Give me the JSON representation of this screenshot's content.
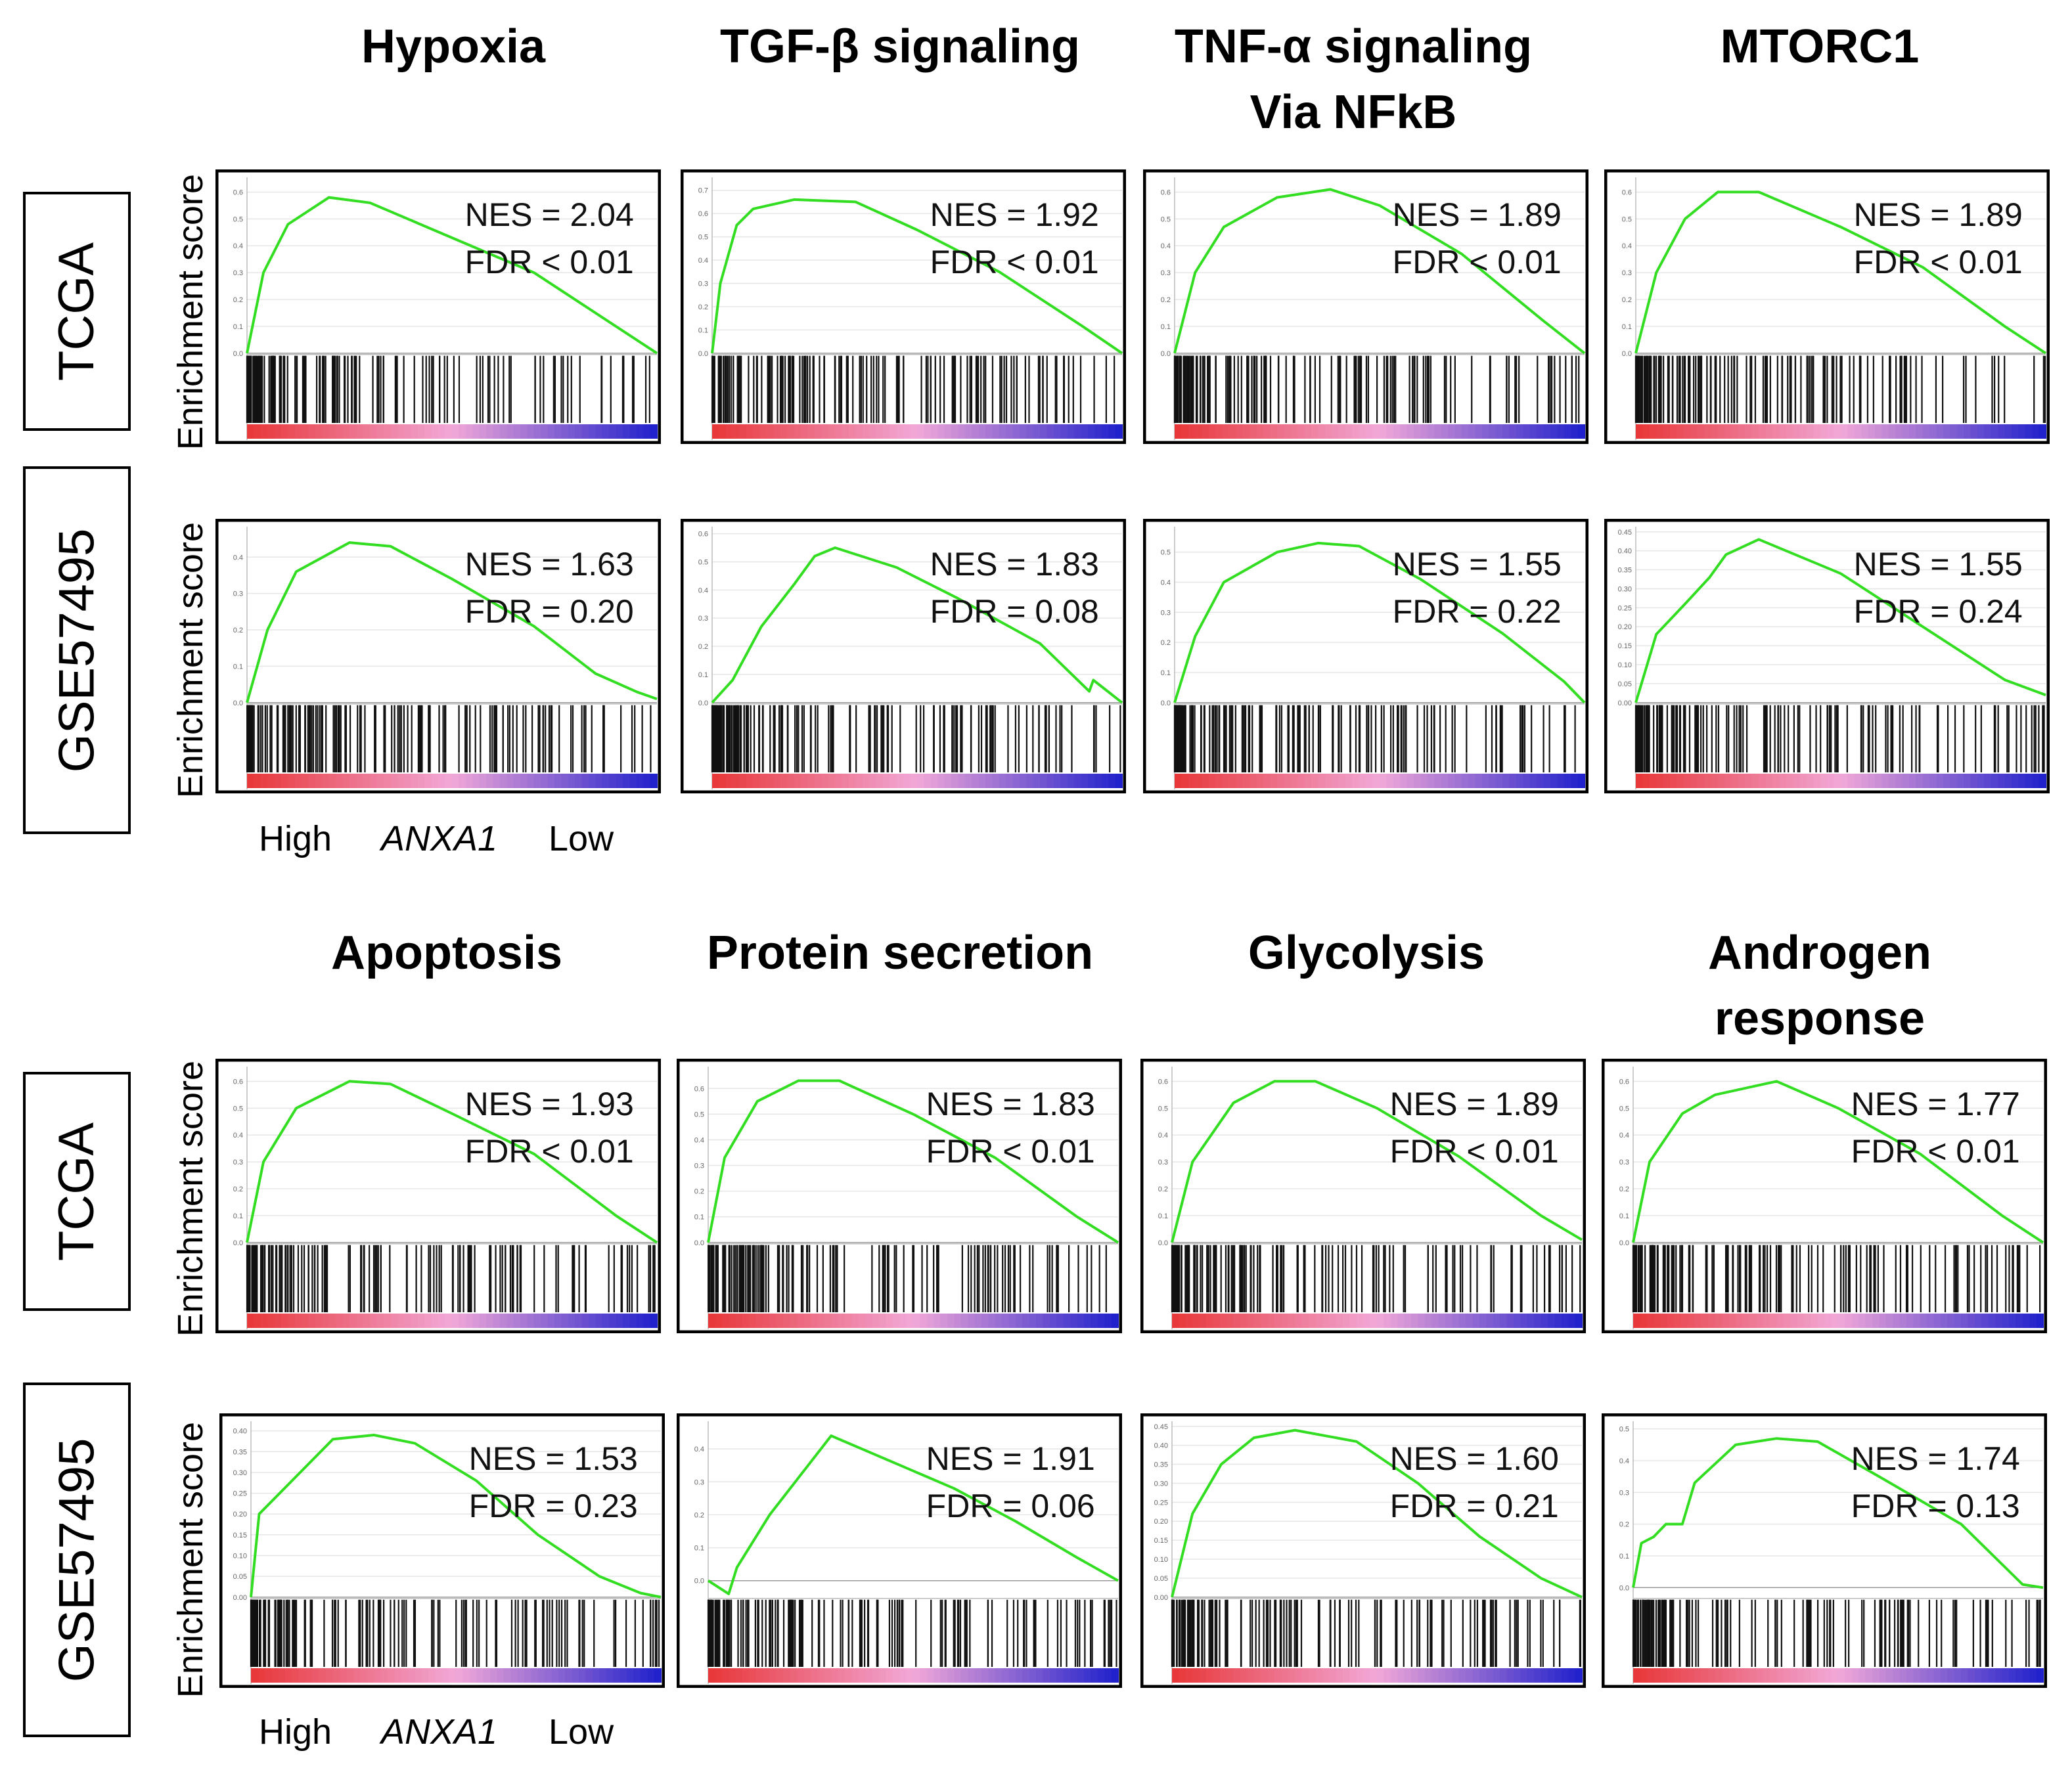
{
  "page": {
    "panels": [
      {
        "titles": [
          "Hypoxia",
          "TGF-β signaling",
          "TNF-α signaling Via NFkB",
          "MTORC1"
        ],
        "rows": [
          {
            "label": "TCGA",
            "y_axis_label": "Enrichment score"
          },
          {
            "label": "GSE57495",
            "y_axis_label": "Enrichment score"
          }
        ],
        "x_axis": {
          "left": "High",
          "center": "ANXA1",
          "right": "Low"
        }
      },
      {
        "titles": [
          "Apoptosis",
          "Protein secretion",
          "Glycolysis",
          "Androgen response"
        ],
        "rows": [
          {
            "label": "TCGA",
            "y_axis_label": "Enrichment score"
          },
          {
            "label": "GSE57495",
            "y_axis_label": "Enrichment score"
          }
        ],
        "x_axis": {
          "left": "High",
          "center": "ANXA1",
          "right": "Low"
        }
      }
    ]
  },
  "colors": {
    "curve": "#33dd22",
    "high_rank": "#e8383a",
    "mid_rank": "#f2a8d8",
    "low_rank": "#2222cc",
    "hits": "#111111"
  },
  "chart_data": [
    {
      "type": "line",
      "title": "Hypoxia",
      "dataset": "TCGA",
      "nes": "NES = 2.04",
      "fdr": "FDR < 0.01",
      "yticks": [
        "0.0",
        "0.1",
        "0.2",
        "0.3",
        "0.4",
        "0.5",
        "0.6"
      ],
      "ylim": [
        0,
        0.65
      ],
      "x": [
        0,
        0.04,
        0.1,
        0.2,
        0.3,
        0.5,
        0.7,
        0.9,
        1.0
      ],
      "y": [
        0,
        0.3,
        0.48,
        0.58,
        0.56,
        0.43,
        0.3,
        0.1,
        0
      ]
    },
    {
      "type": "line",
      "title": "TGF-β signaling",
      "dataset": "TCGA",
      "nes": "NES = 1.92",
      "fdr": "FDR < 0.01",
      "yticks": [
        "0.0",
        "0.1",
        "0.2",
        "0.3",
        "0.4",
        "0.5",
        "0.6",
        "0.7"
      ],
      "ylim": [
        0,
        0.75
      ],
      "x": [
        0,
        0.02,
        0.06,
        0.1,
        0.2,
        0.35,
        0.5,
        0.7,
        0.9,
        1.0
      ],
      "y": [
        0,
        0.3,
        0.55,
        0.62,
        0.66,
        0.65,
        0.53,
        0.35,
        0.12,
        0
      ]
    },
    {
      "type": "line",
      "title": "TNF-α signaling Via NFkB",
      "dataset": "TCGA",
      "nes": "NES = 1.89",
      "fdr": "FDR < 0.01",
      "yticks": [
        "0.0",
        "0.1",
        "0.2",
        "0.3",
        "0.4",
        "0.5",
        "0.6"
      ],
      "ylim": [
        0,
        0.65
      ],
      "x": [
        0,
        0.05,
        0.12,
        0.25,
        0.38,
        0.5,
        0.7,
        0.9,
        1.0
      ],
      "y": [
        0,
        0.3,
        0.47,
        0.58,
        0.61,
        0.55,
        0.37,
        0.12,
        0
      ]
    },
    {
      "type": "line",
      "title": "MTORC1",
      "dataset": "TCGA",
      "nes": "NES = 1.89",
      "fdr": "FDR < 0.01",
      "yticks": [
        "0.0",
        "0.1",
        "0.2",
        "0.3",
        "0.4",
        "0.5",
        "0.6"
      ],
      "ylim": [
        0,
        0.65
      ],
      "x": [
        0,
        0.05,
        0.12,
        0.2,
        0.3,
        0.5,
        0.7,
        0.9,
        1.0
      ],
      "y": [
        0,
        0.3,
        0.5,
        0.6,
        0.6,
        0.47,
        0.32,
        0.1,
        0
      ]
    },
    {
      "type": "line",
      "title": "Hypoxia",
      "dataset": "GSE57495",
      "nes": "NES = 1.63",
      "fdr": "FDR = 0.20",
      "yticks": [
        "0.0",
        "0.1",
        "0.2",
        "0.3",
        "0.4"
      ],
      "ylim": [
        0,
        0.48
      ],
      "x": [
        0,
        0.05,
        0.12,
        0.25,
        0.35,
        0.5,
        0.7,
        0.85,
        0.95,
        1.0
      ],
      "y": [
        0,
        0.2,
        0.36,
        0.44,
        0.43,
        0.34,
        0.21,
        0.08,
        0.03,
        0.01
      ]
    },
    {
      "type": "line",
      "title": "TGF-β signaling",
      "dataset": "GSE57495",
      "nes": "NES = 1.83",
      "fdr": "FDR = 0.08",
      "yticks": [
        "0.0",
        "0.1",
        "0.2",
        "0.3",
        "0.4",
        "0.5",
        "0.6"
      ],
      "ylim": [
        0,
        0.62
      ],
      "x": [
        0,
        0.05,
        0.12,
        0.2,
        0.25,
        0.3,
        0.45,
        0.6,
        0.8,
        0.92,
        0.93,
        1.0
      ],
      "y": [
        0,
        0.08,
        0.27,
        0.42,
        0.52,
        0.55,
        0.48,
        0.37,
        0.21,
        0.04,
        0.08,
        0
      ]
    },
    {
      "type": "line",
      "title": "TNF-α signaling Via NFkB",
      "dataset": "GSE57495",
      "nes": "NES = 1.55",
      "fdr": "FDR = 0.22",
      "yticks": [
        "0.0",
        "0.1",
        "0.2",
        "0.3",
        "0.4",
        "0.5"
      ],
      "ylim": [
        0,
        0.58
      ],
      "x": [
        0,
        0.05,
        0.12,
        0.25,
        0.35,
        0.45,
        0.6,
        0.8,
        0.95,
        1.0
      ],
      "y": [
        0,
        0.22,
        0.4,
        0.5,
        0.53,
        0.52,
        0.41,
        0.23,
        0.07,
        0
      ]
    },
    {
      "type": "line",
      "title": "MTORC1",
      "dataset": "GSE57495",
      "nes": "NES = 1.55",
      "fdr": "FDR = 0.24",
      "yticks": [
        "0.00",
        "0.05",
        "0.10",
        "0.15",
        "0.20",
        "0.25",
        "0.30",
        "0.35",
        "0.40",
        "0.45"
      ],
      "ylim": [
        0,
        0.46
      ],
      "x": [
        0,
        0.05,
        0.12,
        0.18,
        0.22,
        0.3,
        0.5,
        0.7,
        0.9,
        1.0
      ],
      "y": [
        0,
        0.18,
        0.26,
        0.33,
        0.39,
        0.43,
        0.34,
        0.2,
        0.06,
        0.02
      ]
    },
    {
      "type": "line",
      "title": "Apoptosis",
      "dataset": "TCGA",
      "nes": "NES = 1.93",
      "fdr": "FDR < 0.01",
      "yticks": [
        "0.0",
        "0.1",
        "0.2",
        "0.3",
        "0.4",
        "0.5",
        "0.6"
      ],
      "ylim": [
        0,
        0.65
      ],
      "x": [
        0,
        0.04,
        0.12,
        0.25,
        0.35,
        0.5,
        0.7,
        0.9,
        1.0
      ],
      "y": [
        0,
        0.3,
        0.5,
        0.6,
        0.59,
        0.48,
        0.33,
        0.1,
        0
      ]
    },
    {
      "type": "line",
      "title": "Protein secretion",
      "dataset": "TCGA",
      "nes": "NES = 1.83",
      "fdr": "FDR < 0.01",
      "yticks": [
        "0.0",
        "0.1",
        "0.2",
        "0.3",
        "0.4",
        "0.5",
        "0.6"
      ],
      "ylim": [
        0,
        0.68
      ],
      "x": [
        0,
        0.04,
        0.12,
        0.22,
        0.32,
        0.5,
        0.7,
        0.9,
        1.0
      ],
      "y": [
        0,
        0.33,
        0.55,
        0.63,
        0.63,
        0.5,
        0.33,
        0.1,
        0
      ]
    },
    {
      "type": "line",
      "title": "Glycolysis",
      "dataset": "TCGA",
      "nes": "NES = 1.89",
      "fdr": "FDR < 0.01",
      "yticks": [
        "0.0",
        "0.1",
        "0.2",
        "0.3",
        "0.4",
        "0.5",
        "0.6"
      ],
      "ylim": [
        0,
        0.65
      ],
      "x": [
        0,
        0.05,
        0.15,
        0.25,
        0.35,
        0.5,
        0.7,
        0.9,
        1.0
      ],
      "y": [
        0,
        0.3,
        0.52,
        0.6,
        0.6,
        0.5,
        0.32,
        0.1,
        0.01
      ]
    },
    {
      "type": "line",
      "title": "Androgen response",
      "dataset": "TCGA",
      "nes": "NES = 1.77",
      "fdr": "FDR < 0.01",
      "yticks": [
        "0.0",
        "0.1",
        "0.2",
        "0.3",
        "0.4",
        "0.5",
        "0.6"
      ],
      "ylim": [
        0,
        0.65
      ],
      "x": [
        0,
        0.04,
        0.12,
        0.2,
        0.35,
        0.5,
        0.7,
        0.9,
        1.0
      ],
      "y": [
        0,
        0.3,
        0.48,
        0.55,
        0.6,
        0.5,
        0.33,
        0.1,
        0
      ]
    },
    {
      "type": "line",
      "title": "Apoptosis",
      "dataset": "GSE57495",
      "nes": "NES = 1.53",
      "fdr": "FDR = 0.23",
      "yticks": [
        "0.00",
        "0.05",
        "0.10",
        "0.15",
        "0.20",
        "0.25",
        "0.30",
        "0.35",
        "0.40"
      ],
      "ylim": [
        0,
        0.42
      ],
      "x": [
        0,
        0.02,
        0.1,
        0.2,
        0.3,
        0.4,
        0.55,
        0.7,
        0.85,
        0.95,
        1.0
      ],
      "y": [
        0,
        0.2,
        0.28,
        0.38,
        0.39,
        0.37,
        0.28,
        0.15,
        0.05,
        0.01,
        0
      ]
    },
    {
      "type": "line",
      "title": "Protein secretion",
      "dataset": "GSE57495",
      "nes": "NES = 1.91",
      "fdr": "FDR = 0.06",
      "yticks": [
        "0.0",
        "0.1",
        "0.2",
        "0.3",
        "0.4"
      ],
      "ylim": [
        -0.05,
        0.48
      ],
      "x": [
        0,
        0.05,
        0.07,
        0.15,
        0.25,
        0.3,
        0.45,
        0.6,
        0.75,
        0.9,
        1.0
      ],
      "y": [
        0,
        -0.04,
        0.04,
        0.2,
        0.36,
        0.44,
        0.36,
        0.28,
        0.18,
        0.07,
        0
      ]
    },
    {
      "type": "line",
      "title": "Glycolysis",
      "dataset": "GSE57495",
      "nes": "NES = 1.60",
      "fdr": "FDR = 0.21",
      "yticks": [
        "0.00",
        "0.05",
        "0.10",
        "0.15",
        "0.20",
        "0.25",
        "0.30",
        "0.35",
        "0.40",
        "0.45"
      ],
      "ylim": [
        0,
        0.46
      ],
      "x": [
        0,
        0.05,
        0.12,
        0.2,
        0.3,
        0.45,
        0.6,
        0.75,
        0.9,
        1.0
      ],
      "y": [
        0,
        0.22,
        0.35,
        0.42,
        0.44,
        0.41,
        0.3,
        0.16,
        0.05,
        0
      ]
    },
    {
      "type": "line",
      "title": "Androgen response",
      "dataset": "GSE57495",
      "nes": "NES = 1.74",
      "fdr": "FDR = 0.13",
      "yticks": [
        "0.0",
        "0.1",
        "0.2",
        "0.3",
        "0.4",
        "0.5"
      ],
      "ylim": [
        -0.03,
        0.52
      ],
      "x": [
        0,
        0.02,
        0.05,
        0.08,
        0.12,
        0.15,
        0.25,
        0.35,
        0.45,
        0.6,
        0.8,
        0.95,
        1.0
      ],
      "y": [
        0,
        0.14,
        0.16,
        0.2,
        0.2,
        0.33,
        0.45,
        0.47,
        0.46,
        0.35,
        0.2,
        0.01,
        0
      ]
    }
  ]
}
